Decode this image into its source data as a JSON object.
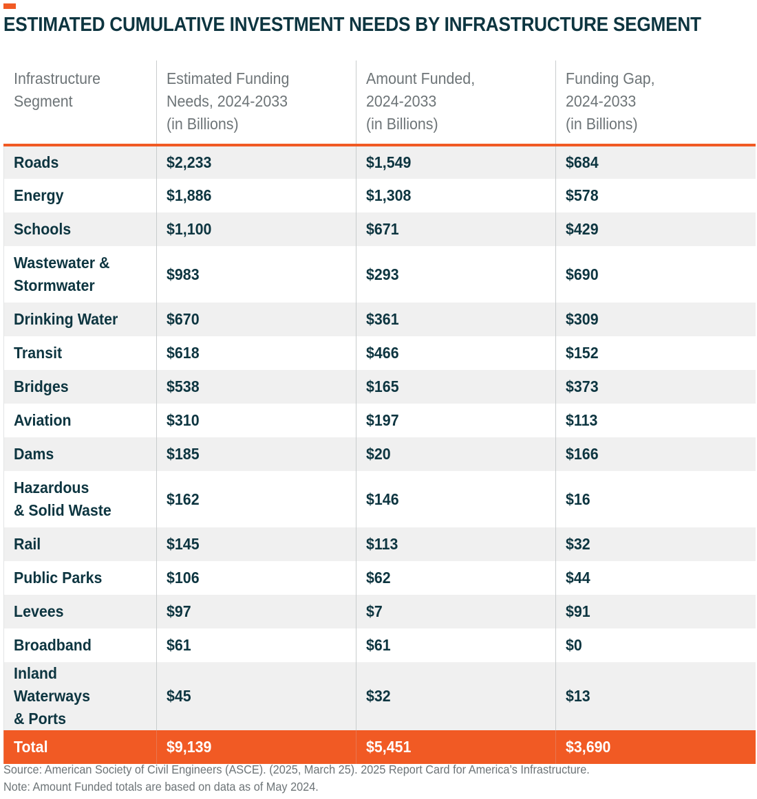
{
  "title": "ESTIMATED CUMULATIVE INVESTMENT NEEDS BY INFRASTRUCTURE SEGMENT",
  "colors": {
    "accent": "#f15a24",
    "text_dark": "#0d3540",
    "header_text": "#6d7477",
    "row_alt": "#f0f0f0"
  },
  "table": {
    "headers": [
      "Infrastructure\nSegment",
      "Estimated Funding\nNeeds, 2024-2033\n(in Billions)",
      "Amount Funded,\n2024-2033\n(in Billions)",
      "Funding Gap,\n2024-2033\n(in Billions)"
    ],
    "rows": [
      [
        "Roads",
        "$2,233",
        "$1,549",
        "$684"
      ],
      [
        "Energy",
        "$1,886",
        "$1,308",
        "$578"
      ],
      [
        "Schools",
        "$1,100",
        "$671",
        "$429"
      ],
      [
        "Wastewater &\nStormwater",
        "$983",
        "$293",
        "$690"
      ],
      [
        "Drinking Water",
        "$670",
        "$361",
        "$309"
      ],
      [
        "Transit",
        "$618",
        "$466",
        "$152"
      ],
      [
        "Bridges",
        "$538",
        "$165",
        "$373"
      ],
      [
        "Aviation",
        "$310",
        "$197",
        "$113"
      ],
      [
        "Dams",
        "$185",
        "$20",
        "$166"
      ],
      [
        "Hazardous\n& Solid Waste",
        "$162",
        "$146",
        "$16"
      ],
      [
        "Rail",
        "$145",
        "$113",
        "$32"
      ],
      [
        "Public Parks",
        "$106",
        "$62",
        "$44"
      ],
      [
        "Levees",
        "$97",
        "$7",
        "$91"
      ],
      [
        "Broadband",
        "$61",
        "$61",
        "$0"
      ],
      [
        "Inland Waterways\n& Ports",
        "$45",
        "$32",
        "$13"
      ]
    ],
    "total": [
      "Total",
      "$9,139",
      "$5,451",
      "$3,690"
    ]
  },
  "footer": {
    "source": "Source: American Society of Civil Engineers (ASCE). (2025, March 25). 2025 Report Card for America’s Infrastructure.",
    "note": "Note: Amount Funded totals are based on data as of May 2024."
  }
}
